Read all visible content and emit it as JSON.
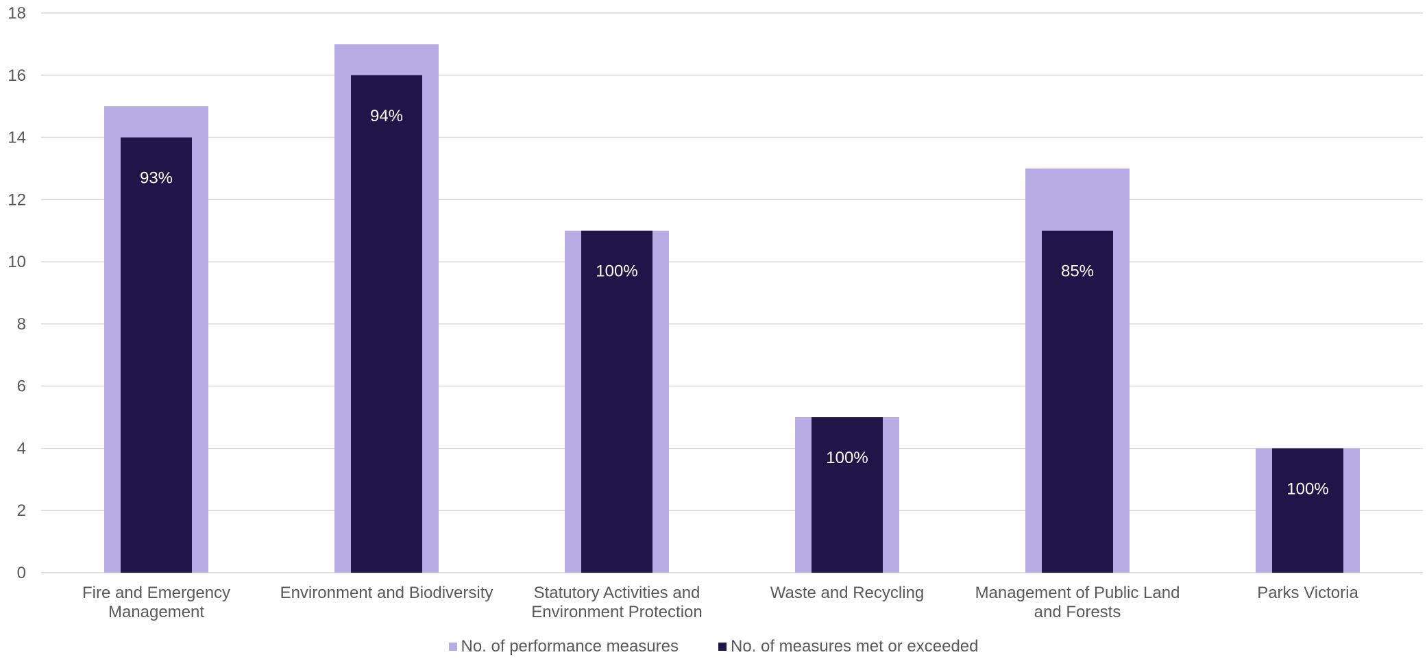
{
  "colors": {
    "total": "#b8ace4",
    "met": "#1f1548",
    "grid": "#d9d9d9",
    "axis_text": "#595959",
    "label_text": "#ffffff",
    "background": "#ffffff"
  },
  "chart_data": {
    "type": "bar",
    "title": "",
    "xlabel": "",
    "ylabel": "",
    "ylim": [
      0,
      18
    ],
    "y_ticks": [
      "0",
      "2",
      "4",
      "6",
      "8",
      "10",
      "12",
      "14",
      "16",
      "18"
    ],
    "grid": true,
    "legend_position": "bottom",
    "categories": [
      [
        "Fire and Emergency",
        "Management"
      ],
      [
        "Environment  and Biodiversity"
      ],
      [
        "Statutory Activities and",
        "Environment Protection"
      ],
      [
        "Waste and Recycling"
      ],
      [
        "Management of Public Land",
        "and Forests"
      ],
      [
        "Parks Victoria"
      ]
    ],
    "series": [
      {
        "name": "No. of performance measures",
        "values": [
          15,
          17,
          11,
          5,
          13,
          4
        ]
      },
      {
        "name": "No. of measures met or exceeded",
        "values": [
          14,
          16,
          11,
          5,
          11,
          4
        ]
      }
    ],
    "data_labels": [
      "93%",
      "94%",
      "100%",
      "100%",
      "85%",
      "100%"
    ]
  }
}
